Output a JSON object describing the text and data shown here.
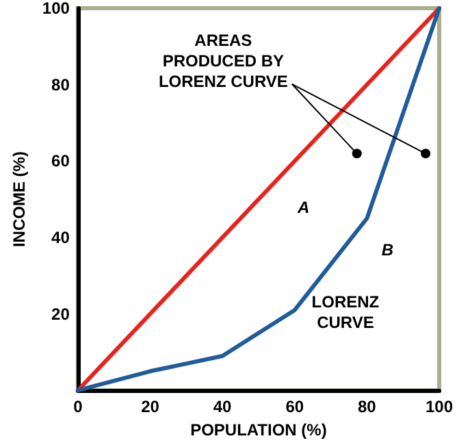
{
  "chart_data": {
    "type": "line",
    "xlabel": "POPULATION (%)",
    "ylabel": "INCOME (%)",
    "xlim": [
      0,
      100
    ],
    "ylim": [
      0,
      100
    ],
    "xticks": [
      0,
      20,
      40,
      60,
      80,
      100
    ],
    "yticks": [
      20,
      40,
      60,
      80,
      100
    ],
    "grid": false,
    "marker": "none",
    "line_style": "solid",
    "series": [
      {
        "color": "#e8221c",
        "x": [
          0,
          100
        ],
        "values": [
          0,
          100
        ]
      },
      {
        "color": "#1f5c99",
        "x": [
          0,
          20,
          40,
          60,
          80,
          100
        ],
        "values": [
          0,
          5,
          9,
          21,
          45,
          100
        ]
      }
    ],
    "annotations": [
      "AREAS\nPRODUCED BY\nLORENZ CURVE",
      "A",
      "B",
      "LORENZ\nCURVE"
    ]
  }
}
